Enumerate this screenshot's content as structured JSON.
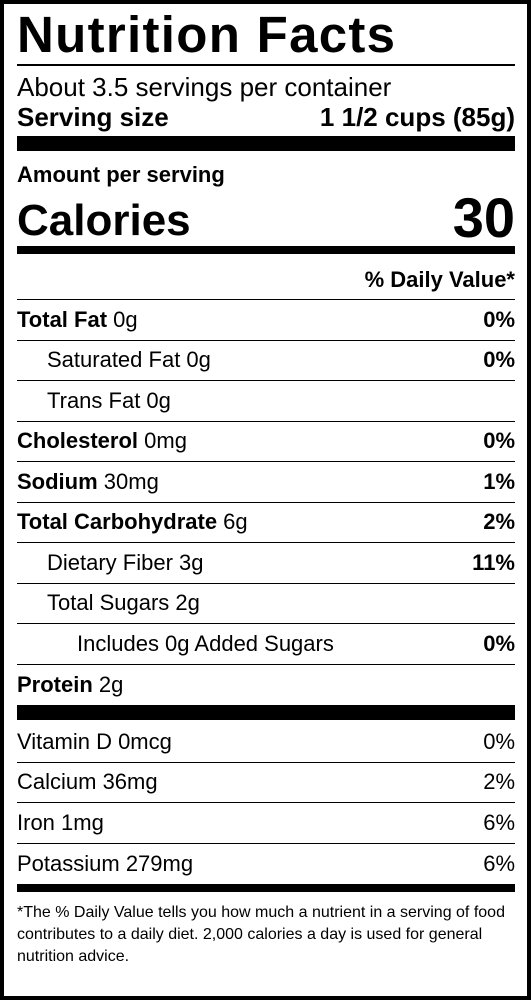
{
  "title": "Nutrition Facts",
  "servings_per_container": "About 3.5 servings per container",
  "serving_size": {
    "label": "Serving size",
    "value": "1 1/2 cups (85g)"
  },
  "amount_per_serving": "Amount per serving",
  "calories": {
    "label": "Calories",
    "value": "30"
  },
  "daily_value_header": "% Daily Value*",
  "nutrients": [
    {
      "name": "Total Fat",
      "amount": " 0g",
      "dv": "0%"
    },
    {
      "name": "Saturated Fat 0g",
      "dv": "0%"
    },
    {
      "name": "Trans Fat 0g",
      "dv": ""
    },
    {
      "name": "Cholesterol",
      "amount": " 0mg",
      "dv": "0%"
    },
    {
      "name": "Sodium",
      "amount": " 30mg",
      "dv": "1%"
    },
    {
      "name": "Total Carbohydrate",
      "amount": " 6g",
      "dv": "2%"
    },
    {
      "name": "Dietary Fiber 3g",
      "dv": "11%"
    },
    {
      "name": "Total Sugars 2g",
      "dv": ""
    },
    {
      "name": "Includes 0g Added Sugars",
      "dv": "0%"
    },
    {
      "name": "Protein",
      "amount": " 2g",
      "dv": ""
    }
  ],
  "vitamins": [
    {
      "name": "Vitamin D 0mcg",
      "dv": "0%"
    },
    {
      "name": "Calcium 36mg",
      "dv": "2%"
    },
    {
      "name": "Iron 1mg",
      "dv": "6%"
    },
    {
      "name": "Potassium 279mg",
      "dv": "6%"
    }
  ],
  "footnote": "*The % Daily Value tells you how much a nutrient in a serving of food contributes to a daily diet. 2,000 calories a day is used for general nutrition advice."
}
